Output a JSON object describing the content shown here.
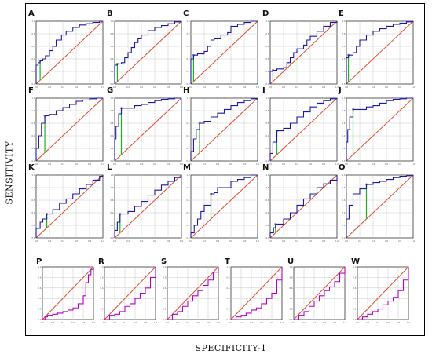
{
  "xlabel": "SPECIFICITY-1",
  "ylabel": "SENSITIVITY",
  "chart_data": {
    "type": "line",
    "description_free": true,
    "xlim": [
      0,
      1
    ],
    "ylim": [
      0,
      1
    ],
    "grid": true,
    "colors": {
      "roc_blue": "#1a1aa6",
      "roc_magenta": "#b400c8",
      "reference": "#e04a2a",
      "youden": "#22b022"
    },
    "panels": [
      {
        "label": "A",
        "color": "roc_blue",
        "cut": [
          0.06,
          0.37
        ],
        "x": [
          0,
          0,
          0.03,
          0.06,
          0.1,
          0.14,
          0.2,
          0.25,
          0.3,
          0.38,
          0.45,
          0.55,
          0.65,
          0.75,
          0.85,
          0.95,
          1
        ],
        "y": [
          0,
          0.3,
          0.34,
          0.37,
          0.4,
          0.45,
          0.53,
          0.6,
          0.7,
          0.78,
          0.84,
          0.9,
          0.94,
          0.96,
          0.98,
          1,
          1
        ]
      },
      {
        "label": "B",
        "color": "roc_blue",
        "cut": [
          0.04,
          0.32
        ],
        "x": [
          0,
          0,
          0.04,
          0.1,
          0.15,
          0.2,
          0.25,
          0.3,
          0.35,
          0.4,
          0.5,
          0.6,
          0.7,
          0.8,
          0.9,
          1
        ],
        "y": [
          0,
          0.3,
          0.32,
          0.34,
          0.42,
          0.5,
          0.58,
          0.66,
          0.72,
          0.78,
          0.85,
          0.9,
          0.93,
          0.96,
          0.99,
          1
        ]
      },
      {
        "label": "C",
        "color": "roc_blue",
        "cut": [
          0.04,
          0.46
        ],
        "x": [
          0,
          0,
          0.04,
          0.1,
          0.2,
          0.25,
          0.3,
          0.35,
          0.45,
          0.55,
          0.6,
          0.7,
          0.8,
          0.9,
          1
        ],
        "y": [
          0,
          0.4,
          0.46,
          0.48,
          0.52,
          0.6,
          0.7,
          0.72,
          0.78,
          0.82,
          0.92,
          0.95,
          0.98,
          1,
          1
        ]
      },
      {
        "label": "D",
        "color": "roc_blue",
        "cut": [
          0.04,
          0.22
        ],
        "x": [
          0,
          0,
          0.04,
          0.1,
          0.2,
          0.25,
          0.3,
          0.35,
          0.4,
          0.5,
          0.55,
          0.6,
          0.7,
          0.8,
          0.9,
          1
        ],
        "y": [
          0,
          0.2,
          0.22,
          0.24,
          0.26,
          0.34,
          0.42,
          0.5,
          0.56,
          0.62,
          0.7,
          0.76,
          0.84,
          0.92,
          0.98,
          1
        ]
      },
      {
        "label": "E",
        "color": "roc_blue",
        "cut": [
          0.03,
          0.46
        ],
        "x": [
          0,
          0,
          0.03,
          0.1,
          0.15,
          0.2,
          0.3,
          0.4,
          0.5,
          0.6,
          0.7,
          0.8,
          0.9,
          1
        ],
        "y": [
          0,
          0.42,
          0.46,
          0.5,
          0.6,
          0.7,
          0.78,
          0.84,
          0.88,
          0.92,
          0.95,
          0.97,
          0.99,
          1
        ]
      },
      {
        "label": "F",
        "color": "roc_blue",
        "cut": [
          0.13,
          0.72
        ],
        "x": [
          0,
          0,
          0.04,
          0.08,
          0.13,
          0.2,
          0.3,
          0.4,
          0.5,
          0.6,
          0.7,
          0.8,
          0.9,
          1
        ],
        "y": [
          0,
          0.2,
          0.4,
          0.6,
          0.72,
          0.74,
          0.8,
          0.85,
          0.9,
          0.95,
          0.97,
          0.99,
          1,
          1
        ]
      },
      {
        "label": "G",
        "color": "roc_blue",
        "cut": [
          0.1,
          0.84
        ],
        "x": [
          0,
          0,
          0.02,
          0.06,
          0.1,
          0.2,
          0.3,
          0.4,
          0.5,
          0.6,
          0.7,
          0.8,
          0.9,
          1
        ],
        "y": [
          0,
          0.35,
          0.55,
          0.75,
          0.84,
          0.84,
          0.88,
          0.9,
          0.93,
          0.96,
          0.98,
          0.99,
          1,
          1
        ]
      },
      {
        "label": "H",
        "color": "roc_blue",
        "cut": [
          0.13,
          0.6
        ],
        "x": [
          0,
          0,
          0.04,
          0.08,
          0.13,
          0.2,
          0.3,
          0.4,
          0.5,
          0.6,
          0.7,
          0.8,
          0.9,
          1
        ],
        "y": [
          0,
          0.15,
          0.35,
          0.5,
          0.6,
          0.63,
          0.7,
          0.76,
          0.82,
          0.88,
          0.93,
          0.96,
          0.99,
          1
        ]
      },
      {
        "label": "I",
        "color": "roc_blue",
        "cut": [
          0.1,
          0.48
        ],
        "x": [
          0,
          0,
          0.04,
          0.1,
          0.2,
          0.3,
          0.4,
          0.5,
          0.6,
          0.7,
          0.8,
          0.9,
          1
        ],
        "y": [
          0,
          0.12,
          0.3,
          0.48,
          0.52,
          0.6,
          0.7,
          0.78,
          0.86,
          0.92,
          0.96,
          0.99,
          1
        ]
      },
      {
        "label": "J",
        "color": "roc_blue",
        "cut": [
          0.1,
          0.82
        ],
        "x": [
          0,
          0,
          0.02,
          0.05,
          0.1,
          0.2,
          0.3,
          0.4,
          0.5,
          0.6,
          0.7,
          0.8,
          0.9,
          1
        ],
        "y": [
          0,
          0.3,
          0.5,
          0.7,
          0.82,
          0.82,
          0.86,
          0.88,
          0.92,
          0.96,
          0.98,
          0.99,
          1,
          1
        ]
      },
      {
        "label": "K",
        "color": "roc_blue",
        "cut": [
          0.16,
          0.38
        ],
        "x": [
          0,
          0,
          0.06,
          0.1,
          0.16,
          0.25,
          0.35,
          0.45,
          0.55,
          0.65,
          0.75,
          0.85,
          0.95,
          1
        ],
        "y": [
          0,
          0.15,
          0.25,
          0.3,
          0.38,
          0.45,
          0.55,
          0.62,
          0.7,
          0.78,
          0.85,
          0.92,
          0.98,
          1
        ]
      },
      {
        "label": "L",
        "color": "roc_blue",
        "cut": [
          0.08,
          0.38
        ],
        "x": [
          0,
          0,
          0.04,
          0.08,
          0.2,
          0.3,
          0.4,
          0.5,
          0.6,
          0.7,
          0.8,
          0.9,
          1
        ],
        "y": [
          0,
          0.12,
          0.25,
          0.38,
          0.42,
          0.5,
          0.58,
          0.68,
          0.76,
          0.84,
          0.9,
          0.96,
          1
        ]
      },
      {
        "label": "M",
        "color": "roc_blue",
        "cut": [
          0.3,
          0.7
        ],
        "x": [
          0,
          0,
          0.05,
          0.1,
          0.15,
          0.2,
          0.3,
          0.35,
          0.4,
          0.55,
          0.6,
          0.7,
          0.8,
          0.9,
          1
        ],
        "y": [
          0,
          0.08,
          0.2,
          0.3,
          0.42,
          0.52,
          0.7,
          0.72,
          0.8,
          0.8,
          0.9,
          0.93,
          0.96,
          1,
          1
        ]
      },
      {
        "label": "N",
        "color": "roc_blue",
        "cut": [
          0.08,
          0.22
        ],
        "x": [
          0,
          0,
          0.05,
          0.08,
          0.2,
          0.3,
          0.4,
          0.5,
          0.6,
          0.7,
          0.8,
          0.9,
          1
        ],
        "y": [
          0,
          0.08,
          0.16,
          0.22,
          0.3,
          0.4,
          0.52,
          0.62,
          0.7,
          0.8,
          0.86,
          0.92,
          1
        ]
      },
      {
        "label": "O",
        "color": "roc_blue",
        "cut": [
          0.3,
          0.85
        ],
        "x": [
          0,
          0,
          0.04,
          0.1,
          0.2,
          0.3,
          0.4,
          0.5,
          0.6,
          0.7,
          0.8,
          0.9,
          1
        ],
        "y": [
          0,
          0.3,
          0.52,
          0.7,
          0.78,
          0.85,
          0.88,
          0.9,
          0.93,
          0.96,
          0.98,
          0.99,
          1
        ]
      },
      {
        "label": "P",
        "color": "roc_magenta",
        "x": [
          0,
          0.05,
          0.1,
          0.2,
          0.3,
          0.4,
          0.5,
          0.6,
          0.7,
          0.8,
          0.85,
          0.9,
          0.95,
          1
        ],
        "y": [
          0,
          0.05,
          0.08,
          0.1,
          0.12,
          0.15,
          0.18,
          0.22,
          0.3,
          0.45,
          0.7,
          0.85,
          0.95,
          1
        ]
      },
      {
        "label": "R",
        "color": "roc_magenta",
        "x": [
          0,
          0.1,
          0.2,
          0.3,
          0.4,
          0.5,
          0.6,
          0.7,
          0.8,
          0.9,
          1
        ],
        "y": [
          0,
          0.08,
          0.1,
          0.15,
          0.25,
          0.3,
          0.4,
          0.5,
          0.6,
          0.8,
          1
        ]
      },
      {
        "label": "S",
        "color": "roc_magenta",
        "x": [
          0,
          0.1,
          0.2,
          0.3,
          0.4,
          0.5,
          0.6,
          0.7,
          0.8,
          0.9,
          1
        ],
        "y": [
          0,
          0.1,
          0.15,
          0.25,
          0.35,
          0.45,
          0.55,
          0.65,
          0.75,
          0.9,
          1
        ]
      },
      {
        "label": "T",
        "color": "roc_magenta",
        "x": [
          0,
          0.1,
          0.2,
          0.3,
          0.4,
          0.5,
          0.6,
          0.7,
          0.8,
          0.9,
          1
        ],
        "y": [
          0,
          0.05,
          0.08,
          0.12,
          0.18,
          0.22,
          0.3,
          0.4,
          0.5,
          0.75,
          1
        ]
      },
      {
        "label": "U",
        "color": "roc_magenta",
        "x": [
          0,
          0.1,
          0.2,
          0.3,
          0.4,
          0.5,
          0.6,
          0.7,
          0.8,
          0.9,
          1
        ],
        "y": [
          0,
          0.08,
          0.15,
          0.25,
          0.35,
          0.45,
          0.55,
          0.62,
          0.72,
          0.88,
          1
        ]
      },
      {
        "label": "W",
        "color": "roc_magenta",
        "x": [
          0,
          0.1,
          0.2,
          0.3,
          0.4,
          0.5,
          0.6,
          0.7,
          0.8,
          0.9,
          1
        ],
        "y": [
          0,
          0.05,
          0.1,
          0.15,
          0.2,
          0.28,
          0.35,
          0.42,
          0.55,
          0.75,
          1
        ]
      }
    ],
    "tick_labels": [
      "0.0",
      "0.2",
      "0.4",
      "0.6",
      "0.8",
      "1.0"
    ]
  }
}
